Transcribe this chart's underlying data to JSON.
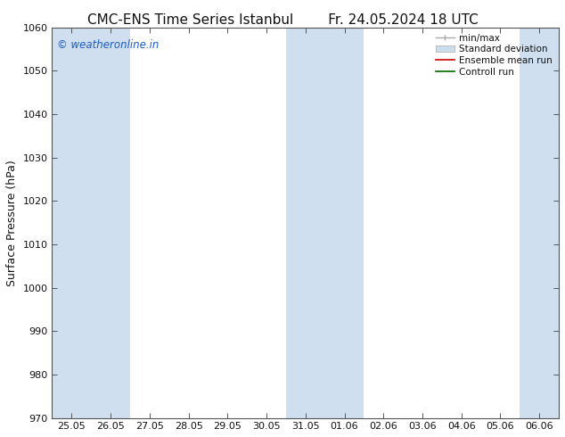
{
  "title_left": "CMC-ENS Time Series Istanbul",
  "title_right": "Fr. 24.05.2024 18 UTC",
  "ylabel": "Surface Pressure (hPa)",
  "ylim": [
    970,
    1060
  ],
  "yticks": [
    970,
    980,
    990,
    1000,
    1010,
    1020,
    1030,
    1040,
    1050,
    1060
  ],
  "xtick_labels": [
    "25.05",
    "26.05",
    "27.05",
    "28.05",
    "29.05",
    "30.05",
    "31.05",
    "01.06",
    "02.06",
    "03.06",
    "04.06",
    "05.06",
    "06.06"
  ],
  "shaded_indices": [
    0,
    1,
    6,
    7,
    12
  ],
  "shaded_color": "#cfdff0",
  "watermark": "© weatheronline.in",
  "watermark_color": "#1a5bc4",
  "legend_entries": [
    "min/max",
    "Standard deviation",
    "Ensemble mean run",
    "Controll run"
  ],
  "background_color": "#ffffff",
  "font_color": "#111111",
  "title_fontsize": 11,
  "tick_fontsize": 8,
  "ylabel_fontsize": 9
}
